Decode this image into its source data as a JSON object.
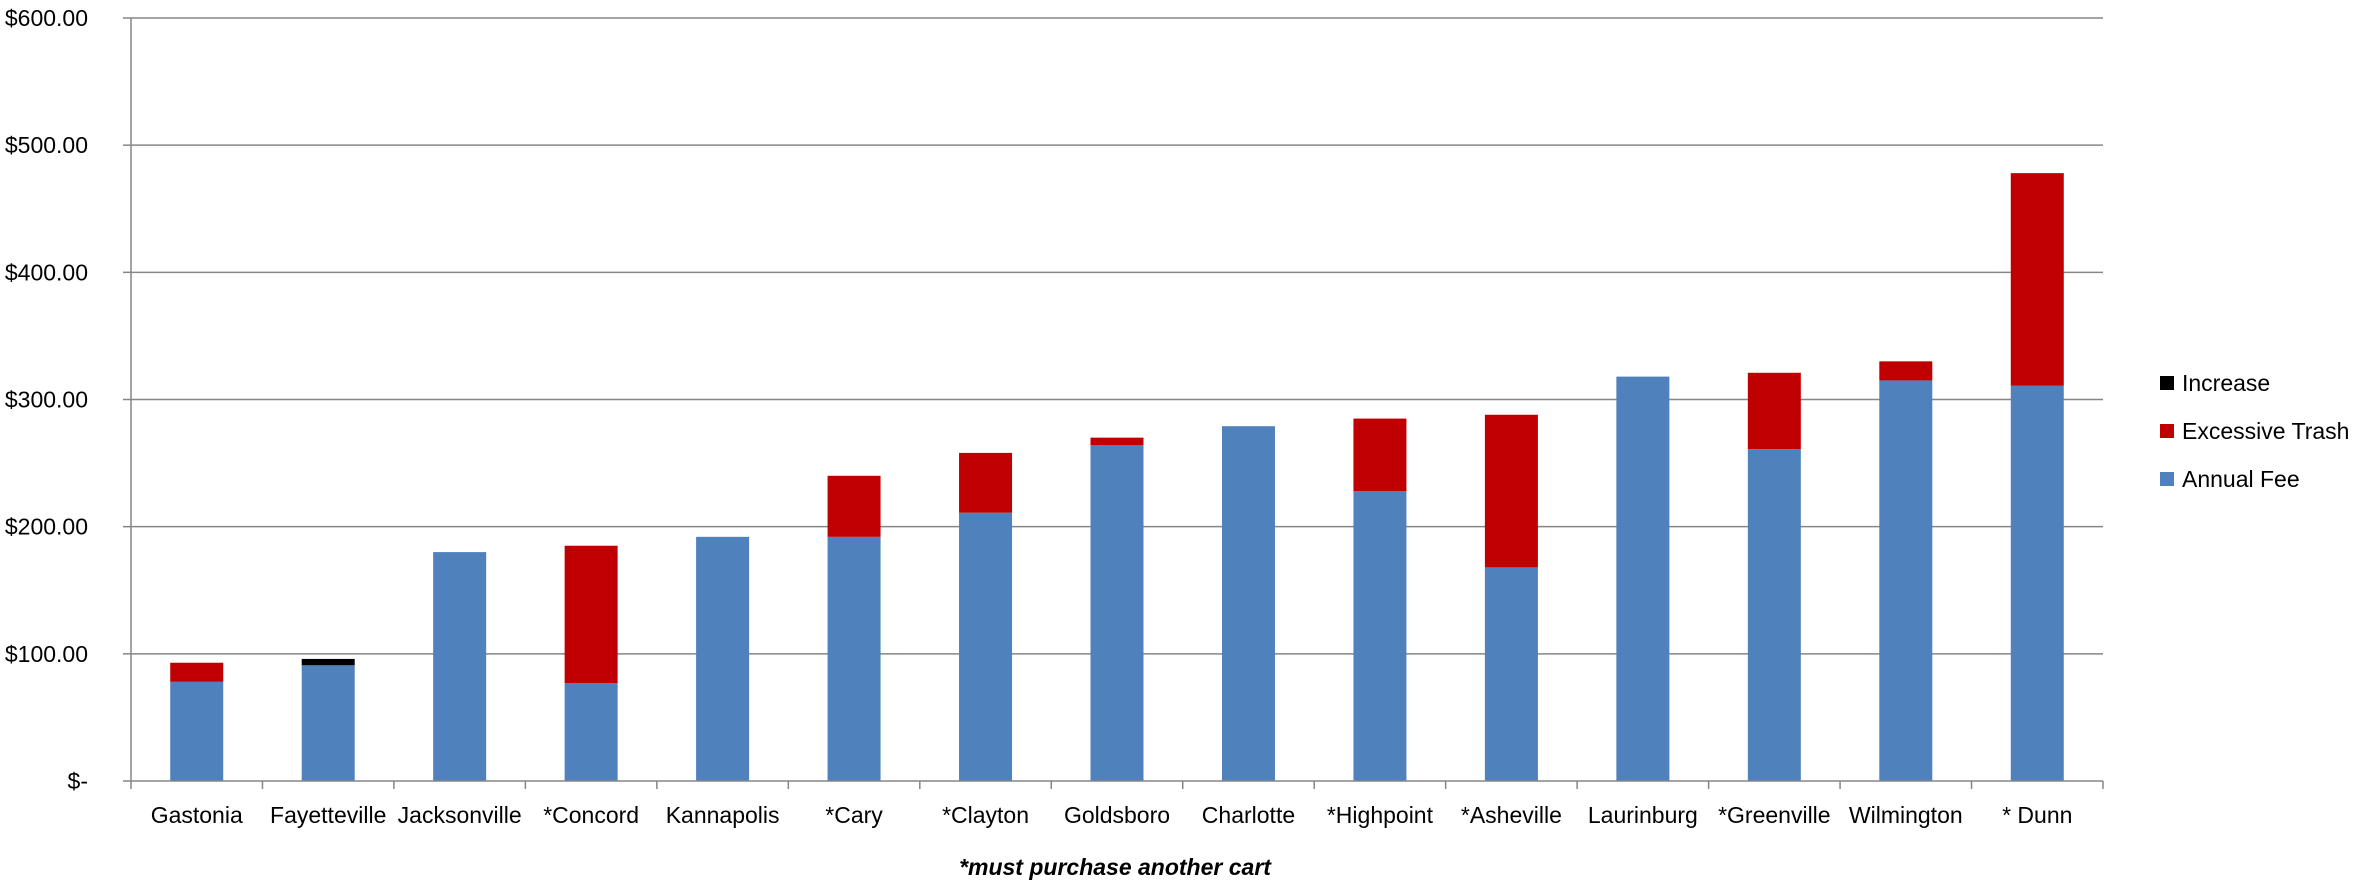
{
  "chart_data": {
    "type": "bar",
    "stacked": true,
    "categories": [
      "Gastonia",
      "Fayetteville",
      "Jacksonville",
      "*Concord",
      "Kannapolis",
      "*Cary",
      "*Clayton",
      "Goldsboro",
      "Charlotte",
      "*Highpoint",
      "*Asheville",
      "Laurinburg",
      "*Greenville",
      "Wilmington",
      "* Dunn"
    ],
    "series": [
      {
        "name": "Annual Fee",
        "color": "#4F81BD",
        "values": [
          78,
          91,
          180,
          77,
          192,
          192,
          211,
          264,
          279,
          228,
          168,
          318,
          261,
          315,
          311
        ]
      },
      {
        "name": "Excessive Trash",
        "color": "#C00000",
        "values": [
          15,
          0,
          0,
          108,
          0,
          48,
          47,
          6,
          0,
          57,
          120,
          0,
          60,
          15,
          167
        ]
      },
      {
        "name": "Increase",
        "color": "#000000",
        "values": [
          0,
          5,
          0,
          0,
          0,
          0,
          0,
          0,
          0,
          0,
          0,
          0,
          0,
          0,
          0
        ]
      }
    ],
    "y_ticks": [
      "$-",
      "$100.00",
      "$200.00",
      "$300.00",
      "$400.00",
      "$500.00",
      "$600.00"
    ],
    "ylim": [
      0,
      600
    ],
    "ystep": 100,
    "grid": true,
    "legend_position": "right",
    "legend_order": [
      "Increase",
      "Excessive Trash",
      "Annual Fee"
    ],
    "footnote": "*must purchase another cart",
    "gridline_color": "#868686",
    "axis_color": "#868686"
  }
}
